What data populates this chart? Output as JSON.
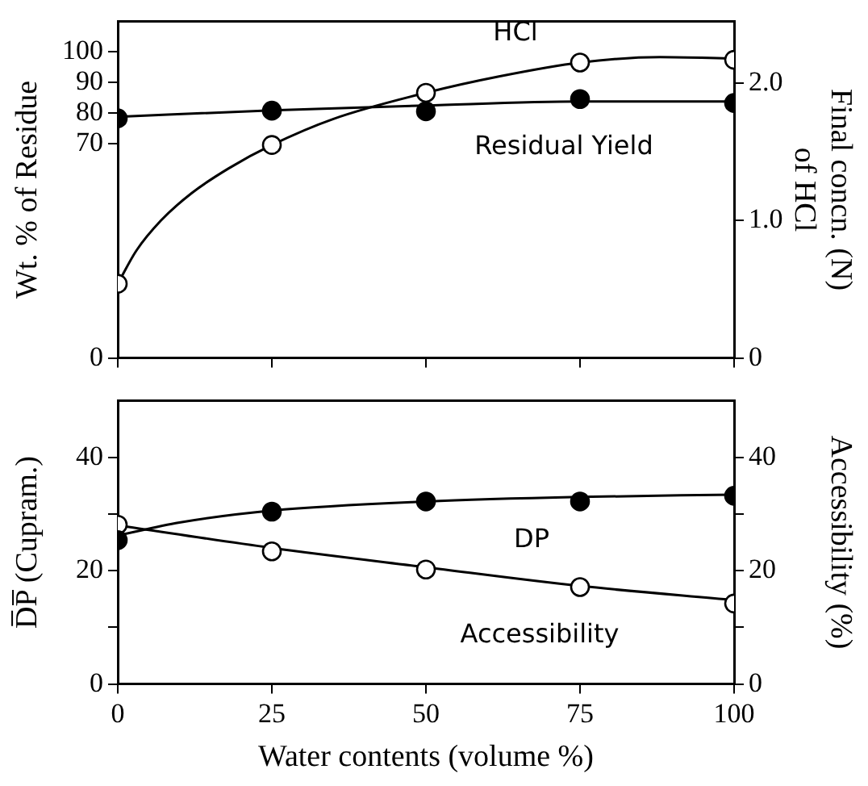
{
  "chart_data": [
    {
      "type": "scatter",
      "ylabel": "Wt. % of Residue",
      "y2label": "Final concn. (N)\nof HCl",
      "xlim": [
        0,
        100
      ],
      "xticks": [
        0,
        25,
        50,
        75,
        100
      ],
      "ylim": [
        0,
        110
      ],
      "yticks": [
        0,
        70,
        80,
        90,
        100
      ],
      "y2lim": [
        0,
        2.45
      ],
      "y2ticks": [
        0,
        {
          "value": 1,
          "label": "1.0"
        },
        {
          "value": 2,
          "label": "2.0"
        }
      ],
      "tick_labels": "y",
      "grid": false,
      "legend": false,
      "marker": "circle",
      "x": [
        0,
        25,
        50,
        75,
        100
      ],
      "series": [
        {
          "name": "Residual Yield",
          "color": "#000000",
          "values": [
            78.3,
            80.8,
            80.6,
            84.6,
            83.3
          ]
        },
        {
          "name": "HCl",
          "color": "#ffffff",
          "axis": "y2",
          "values": [
            0.54,
            1.55,
            1.93,
            2.15,
            2.17
          ]
        },
        {
          "type": "line",
          "color": "#000000",
          "marker": "none",
          "x": [
            0,
            25,
            50,
            75,
            100
          ],
          "values": [
            78.8,
            80.9,
            82.5,
            83.8,
            83.8
          ]
        },
        {
          "type": "line",
          "color": "#000000",
          "marker": "none",
          "axis": "y2",
          "x": [
            0,
            3,
            7,
            12,
            18,
            25,
            35,
            50,
            62,
            75,
            88,
            100
          ],
          "values": [
            0.54,
            0.78,
            1.0,
            1.2,
            1.38,
            1.55,
            1.74,
            1.93,
            2.05,
            2.15,
            2.19,
            2.18
          ]
        }
      ]
    },
    {
      "type": "scatter",
      "xlabel": "Water contents (volume %)",
      "ylabel": "D̅P̅ (Cupram.)",
      "y2label": "Accessibility (%)",
      "xlim": [
        0,
        100
      ],
      "xticks": [
        0,
        25,
        50,
        75,
        100
      ],
      "ylim": [
        0,
        50
      ],
      "yticks": [
        0,
        {
          "value": 10,
          "label": null
        },
        20,
        {
          "value": 30,
          "label": null
        },
        40
      ],
      "y2lim": [
        0,
        50
      ],
      "y2ticks": [
        0,
        {
          "value": 10,
          "label": null
        },
        20,
        {
          "value": 30,
          "label": null
        },
        40
      ],
      "grid": false,
      "legend": false,
      "marker": "circle",
      "x": [
        0,
        25,
        50,
        75,
        100
      ],
      "series": [
        {
          "name": "DP",
          "color": "#000000",
          "values": [
            25.4,
            30.4,
            32.2,
            32.2,
            33.2
          ]
        },
        {
          "name": "Accessibility",
          "color": "#ffffff",
          "axis": "y2",
          "values": [
            28.1,
            23.4,
            20.2,
            17.1,
            14.2
          ]
        },
        {
          "type": "line",
          "color": "#000000",
          "marker": "none",
          "x": [
            0,
            10,
            25,
            50,
            75,
            100
          ],
          "values": [
            26.2,
            28.5,
            30.6,
            32.2,
            33.0,
            33.4
          ]
        },
        {
          "type": "line",
          "color": "#000000",
          "marker": "none",
          "axis": "y2",
          "x": [
            0,
            25,
            50,
            75,
            100
          ],
          "values": [
            28.0,
            24.0,
            20.6,
            17.3,
            14.8
          ]
        }
      ]
    }
  ]
}
